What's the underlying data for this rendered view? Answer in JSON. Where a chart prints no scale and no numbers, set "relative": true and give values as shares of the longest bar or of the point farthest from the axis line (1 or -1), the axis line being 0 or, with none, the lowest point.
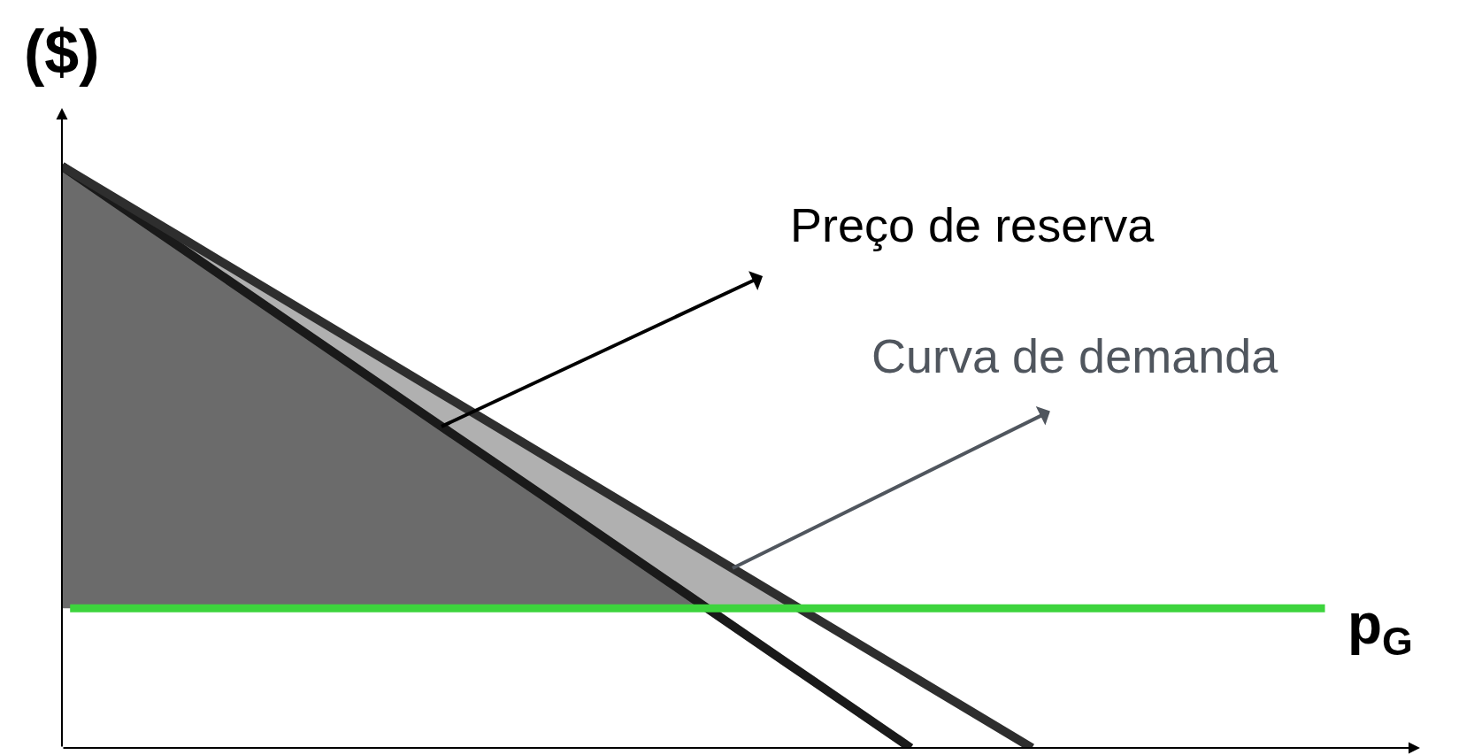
{
  "chart_data": {
    "type": "line",
    "ylabel": "($)",
    "categories": [
      null,
      null,
      null,
      null,
      null,
      null,
      null,
      null,
      null,
      null,
      null,
      null
    ],
    "relative": true,
    "series": [
      {
        "color": "#1a1a1a",
        "values": [
          1,
          0.857,
          0.714,
          0.571,
          0.429,
          0.286,
          0.143,
          0,
          null,
          null,
          null,
          null
        ]
      },
      {
        "color": "#2e2e2e",
        "values": [
          1,
          0.875,
          0.75,
          0.625,
          0.5,
          0.375,
          0.25,
          0.125,
          0,
          null,
          null,
          null
        ]
      }
    ],
    "ref_lines": [
      {
        "axis": "y",
        "value": 0.24,
        "label": "p$_{G}$",
        "color": "#3dd43d"
      }
    ],
    "annotations": [
      "Preço de reserva",
      "Curva de demanda"
    ],
    "marker": "none",
    "line_style": "solid"
  }
}
